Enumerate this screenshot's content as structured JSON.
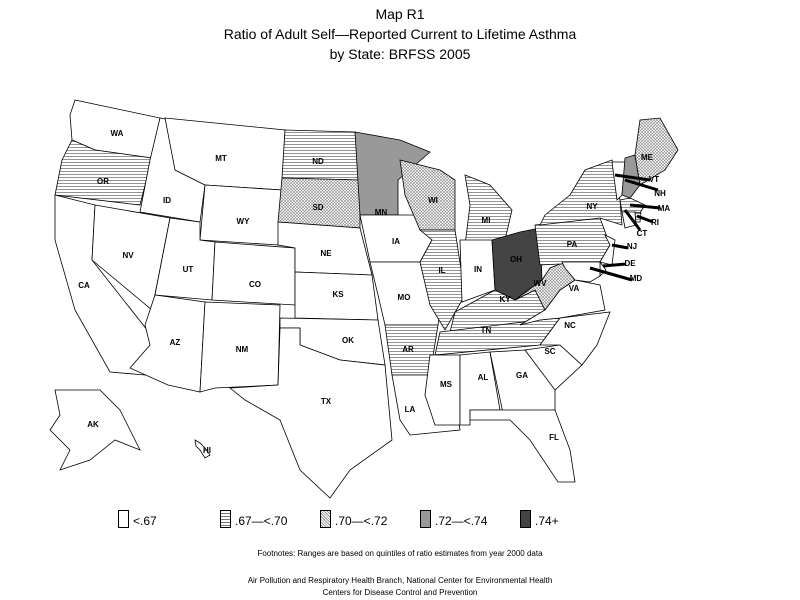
{
  "title": {
    "line1": "Map R1",
    "line2": "Ratio of Adult Self—Reported Current to Lifetime Asthma",
    "line3": "by State: BRFSS 2005"
  },
  "legend": [
    {
      "label": "<.67",
      "pattern": "none",
      "color": "#ffffff"
    },
    {
      "label": ".67—<.70",
      "pattern": "horizontal-lines",
      "color": "#ffffff"
    },
    {
      "label": ".70—<.72",
      "pattern": "crosshatch",
      "color": "#ffffff"
    },
    {
      "label": ".72—<.74",
      "pattern": "solid",
      "color": "#999999"
    },
    {
      "label": ".74+",
      "pattern": "solid",
      "color": "#444444"
    }
  ],
  "states": [
    {
      "abbr": "WA",
      "cat": 0
    },
    {
      "abbr": "OR",
      "cat": 1
    },
    {
      "abbr": "CA",
      "cat": 0
    },
    {
      "abbr": "NV",
      "cat": 0
    },
    {
      "abbr": "ID",
      "cat": 0
    },
    {
      "abbr": "MT",
      "cat": 0
    },
    {
      "abbr": "WY",
      "cat": 0
    },
    {
      "abbr": "UT",
      "cat": 0
    },
    {
      "abbr": "CO",
      "cat": 0
    },
    {
      "abbr": "AZ",
      "cat": 0
    },
    {
      "abbr": "NM",
      "cat": 0
    },
    {
      "abbr": "ND",
      "cat": 1
    },
    {
      "abbr": "SD",
      "cat": 2
    },
    {
      "abbr": "NE",
      "cat": 0
    },
    {
      "abbr": "KS",
      "cat": 0
    },
    {
      "abbr": "OK",
      "cat": 0
    },
    {
      "abbr": "TX",
      "cat": 0
    },
    {
      "abbr": "MN",
      "cat": 3
    },
    {
      "abbr": "IA",
      "cat": 0
    },
    {
      "abbr": "MO",
      "cat": 0
    },
    {
      "abbr": "AR",
      "cat": 1
    },
    {
      "abbr": "LA",
      "cat": 0
    },
    {
      "abbr": "WI",
      "cat": 2
    },
    {
      "abbr": "IL",
      "cat": 1
    },
    {
      "abbr": "MI",
      "cat": 1
    },
    {
      "abbr": "IN",
      "cat": 0
    },
    {
      "abbr": "OH",
      "cat": 4
    },
    {
      "abbr": "KY",
      "cat": 1
    },
    {
      "abbr": "TN",
      "cat": 1
    },
    {
      "abbr": "MS",
      "cat": 0
    },
    {
      "abbr": "AL",
      "cat": 0
    },
    {
      "abbr": "GA",
      "cat": 0
    },
    {
      "abbr": "FL",
      "cat": 0
    },
    {
      "abbr": "SC",
      "cat": 0
    },
    {
      "abbr": "NC",
      "cat": 0
    },
    {
      "abbr": "VA",
      "cat": 0
    },
    {
      "abbr": "WV",
      "cat": 2
    },
    {
      "abbr": "PA",
      "cat": 1
    },
    {
      "abbr": "NY",
      "cat": 1
    },
    {
      "abbr": "VT",
      "cat": 0
    },
    {
      "abbr": "NH",
      "cat": 3
    },
    {
      "abbr": "ME",
      "cat": 2
    },
    {
      "abbr": "MA",
      "cat": 1
    },
    {
      "abbr": "CT",
      "cat": 0
    },
    {
      "abbr": "RI",
      "cat": 1
    },
    {
      "abbr": "NJ",
      "cat": 0
    },
    {
      "abbr": "DE",
      "cat": 0
    },
    {
      "abbr": "MD",
      "cat": 0
    },
    {
      "abbr": "AK",
      "cat": 0
    },
    {
      "abbr": "HI",
      "cat": 0
    }
  ],
  "footnote": "Footnotes: Ranges are based on quintiles of ratio estimates from year 2000 data",
  "credit1": "Air Pollution and Respiratory Health Branch, National Center for Environmental Health",
  "credit2": "Centers for Disease Control and Prevention"
}
